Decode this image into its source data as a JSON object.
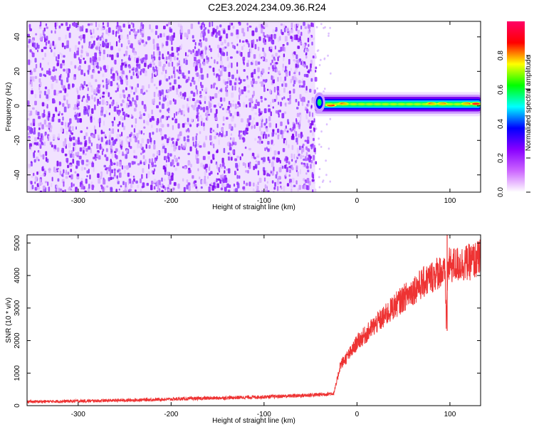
{
  "title": "C2E3.2024.234.09.36.R24",
  "chart_data": [
    {
      "type": "heatmap",
      "xlabel": "Height of straight line (km)",
      "ylabel": "Frequency (Hz)",
      "xlim": [
        -355,
        133
      ],
      "ylim": [
        -50,
        49
      ],
      "xticks": [
        -300,
        -200,
        -100,
        0,
        100
      ],
      "yticks": [
        -40,
        -20,
        0,
        20,
        40
      ],
      "noise_region_x": [
        -355,
        -45
      ],
      "signal_region_x": [
        -45,
        133
      ],
      "signal_band_center_hz": 1,
      "signal_band_halfwidth_hz": 3,
      "colorbar": {
        "label": "Normalized spectral amplitude",
        "range": [
          0,
          1
        ],
        "ticks": [
          0.0,
          0.2,
          0.4,
          0.6,
          0.8
        ],
        "colors": [
          "#ffffff",
          "#cc66ff",
          "#8800ff",
          "#0000ff",
          "#00ffff",
          "#00ff00",
          "#ffff00",
          "#ff0000",
          "#ff0066"
        ]
      },
      "grid": false
    },
    {
      "type": "line",
      "xlabel": "Height of straight line (km)",
      "ylabel": "SNR (10 * v/v)",
      "xlim": [
        -355,
        133
      ],
      "ylim": [
        0,
        5250
      ],
      "xticks": [
        -300,
        -200,
        -100,
        0,
        100
      ],
      "yticks": [
        0,
        1000,
        2000,
        3000,
        4000,
        5000
      ],
      "color": "#ee3333",
      "series": [
        {
          "x": [
            -355,
            -300,
            -250,
            -200,
            -150,
            -100,
            -60,
            -40,
            -25,
            -22,
            -18,
            -12,
            -5,
            0,
            10,
            20,
            30,
            40,
            50,
            60,
            70,
            80,
            90,
            95,
            96,
            98,
            100,
            110,
            120,
            125,
            130,
            133
          ],
          "y": [
            120,
            140,
            165,
            200,
            235,
            270,
            310,
            340,
            380,
            700,
            1250,
            1450,
            1700,
            1950,
            2200,
            2500,
            2750,
            3050,
            3300,
            3550,
            3750,
            3950,
            4150,
            4000,
            2600,
            4300,
            4300,
            4350,
            4400,
            4450,
            4500,
            4550
          ]
        }
      ],
      "grid": false
    }
  ]
}
